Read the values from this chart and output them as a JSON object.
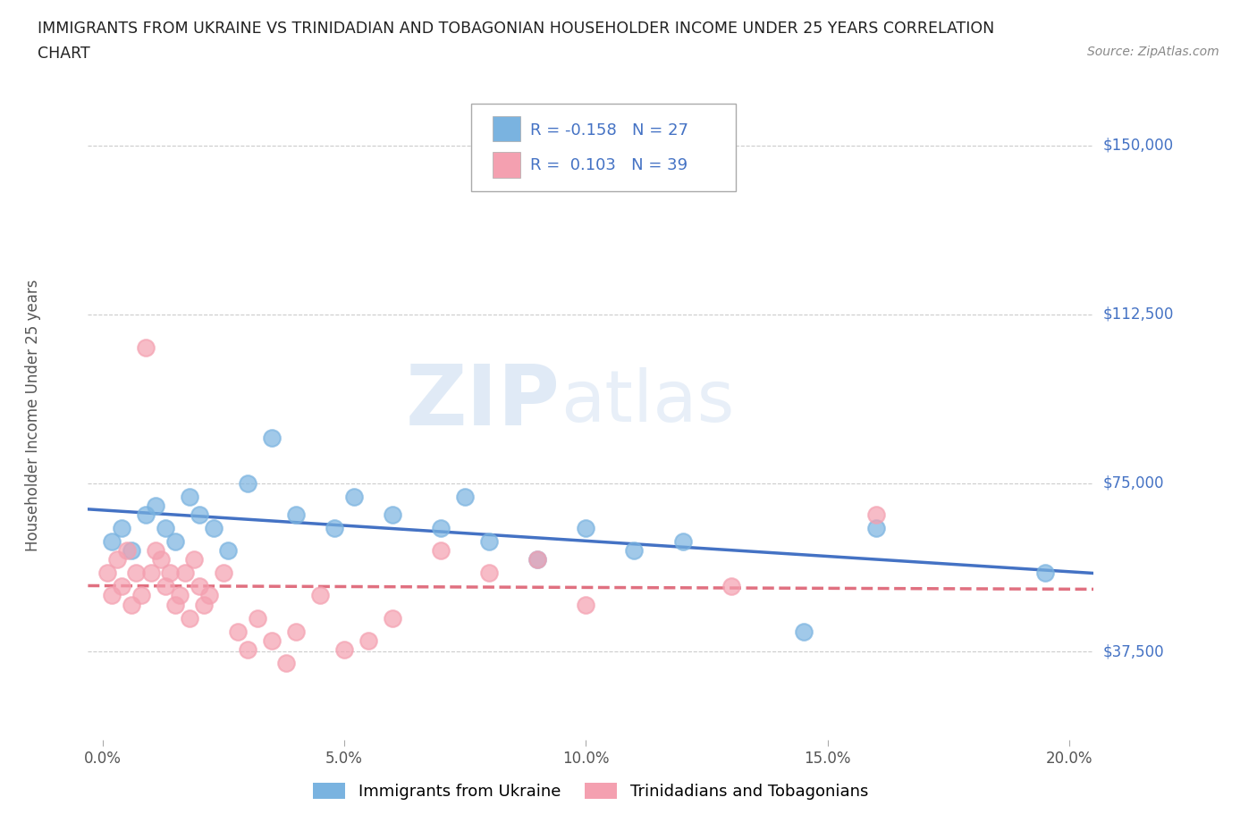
{
  "title_line1": "IMMIGRANTS FROM UKRAINE VS TRINIDADIAN AND TOBAGONIAN HOUSEHOLDER INCOME UNDER 25 YEARS CORRELATION",
  "title_line2": "CHART",
  "source": "Source: ZipAtlas.com",
  "xlabel_ticks": [
    "0.0%",
    "5.0%",
    "10.0%",
    "15.0%",
    "20.0%"
  ],
  "xlabel_tick_vals": [
    0.0,
    5.0,
    10.0,
    15.0,
    20.0
  ],
  "ylabel": "Householder Income Under 25 years",
  "ytick_labels": [
    "$37,500",
    "$75,000",
    "$112,500",
    "$150,000"
  ],
  "ytick_vals": [
    37500,
    75000,
    112500,
    150000
  ],
  "xmin": -0.3,
  "xmax": 20.5,
  "ymin": 18000,
  "ymax": 162000,
  "ukraine_color": "#7ab3e0",
  "tt_color": "#f4a0b0",
  "ukraine_R": -0.158,
  "ukraine_N": 27,
  "tt_R": 0.103,
  "tt_N": 39,
  "ukraine_scatter_x": [
    0.2,
    0.4,
    0.6,
    0.9,
    1.1,
    1.3,
    1.5,
    1.8,
    2.0,
    2.3,
    2.6,
    3.0,
    3.5,
    4.0,
    4.8,
    5.2,
    6.0,
    7.0,
    7.5,
    8.0,
    9.0,
    10.0,
    11.0,
    12.0,
    14.5,
    16.0,
    19.5
  ],
  "ukraine_scatter_y": [
    62000,
    65000,
    60000,
    68000,
    70000,
    65000,
    62000,
    72000,
    68000,
    65000,
    60000,
    75000,
    85000,
    68000,
    65000,
    72000,
    68000,
    65000,
    72000,
    62000,
    58000,
    65000,
    60000,
    62000,
    42000,
    65000,
    55000
  ],
  "tt_scatter_x": [
    0.1,
    0.2,
    0.3,
    0.4,
    0.5,
    0.6,
    0.7,
    0.8,
    0.9,
    1.0,
    1.1,
    1.2,
    1.3,
    1.4,
    1.5,
    1.6,
    1.7,
    1.8,
    1.9,
    2.0,
    2.1,
    2.2,
    2.5,
    2.8,
    3.0,
    3.2,
    3.5,
    3.8,
    4.0,
    4.5,
    5.0,
    5.5,
    6.0,
    7.0,
    8.0,
    9.0,
    10.0,
    13.0,
    16.0
  ],
  "tt_scatter_y": [
    55000,
    50000,
    58000,
    52000,
    60000,
    48000,
    55000,
    50000,
    105000,
    55000,
    60000,
    58000,
    52000,
    55000,
    48000,
    50000,
    55000,
    45000,
    58000,
    52000,
    48000,
    50000,
    55000,
    42000,
    38000,
    45000,
    40000,
    35000,
    42000,
    50000,
    38000,
    40000,
    45000,
    60000,
    55000,
    58000,
    48000,
    52000,
    68000
  ],
  "watermark_zip": "ZIP",
  "watermark_atlas": "atlas",
  "grid_color": "#cccccc",
  "ukraine_line_color": "#4472c4",
  "tt_line_color": "#e07080",
  "bg_color": "#ffffff",
  "legend_text_color": "#4472c4"
}
